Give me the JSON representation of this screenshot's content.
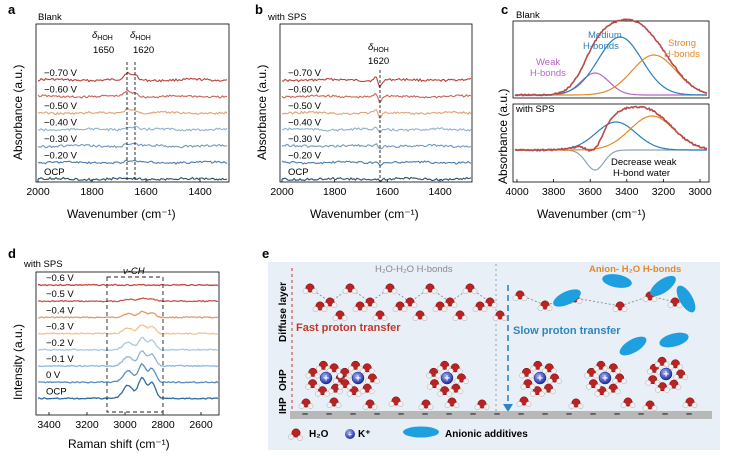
{
  "panels": {
    "a": {
      "label": "a",
      "condition": "Blank",
      "ylabel": "Absorbance (a.u.)",
      "xlabel": "Wavenumber (cm⁻¹)",
      "xticks": [
        "2000",
        "1800",
        "1600",
        "1400"
      ],
      "peak1_sym": "δ",
      "peak1_sub": "HOH",
      "peak1_val": "1650",
      "peak2_sym": "δ",
      "peak2_sub": "HOH",
      "peak2_val": "1620",
      "traces": [
        "−0.70 V",
        "−0.60 V",
        "−0.50 V",
        "−0.40 V",
        "−0.30 V",
        "−0.20 V",
        "OCP"
      ]
    },
    "b": {
      "label": "b",
      "condition": "with SPS",
      "ylabel": "Absorbance (a.u.)",
      "xlabel": "Wavenumber (cm⁻¹)",
      "xticks": [
        "2000",
        "1800",
        "1600",
        "1400"
      ],
      "peak_sym": "δ",
      "peak_sub": "HOH",
      "peak_val": "1620",
      "traces": [
        "−0.70 V",
        "−0.60 V",
        "−0.50 V",
        "−0.40 V",
        "−0.30 V",
        "−0.20 V",
        "OCP"
      ]
    },
    "c": {
      "label": "c",
      "condition_top": "Blank",
      "condition_bottom": "with SPS",
      "ylabel": "Absorbance (a.u.)",
      "xlabel": "Wavenumber (cm⁻¹)",
      "xticks": [
        "4000",
        "3800",
        "3600",
        "3400",
        "3200",
        "3000"
      ],
      "medium_line1": "Medium",
      "medium_line2": "H-bonds",
      "weak_line1": "Weak",
      "weak_line2": "H-bonds",
      "strong_line1": "Strong",
      "strong_line2": "H-bonds",
      "note_line1": "Decrease weak",
      "note_line2": "H-bond water"
    },
    "d": {
      "label": "d",
      "condition": "with SPS",
      "ylabel": "Intensity (a.u.)",
      "xlabel": "Raman shift (cm⁻¹)",
      "xticks": [
        "3400",
        "3200",
        "3000",
        "2800",
        "2600"
      ],
      "band": "ν-CH",
      "traces": [
        "−0.6 V",
        "−0.5 V",
        "−0.4 V",
        "−0.3 V",
        "−0.2 V",
        "−0.1 V",
        "0 V",
        "OCP"
      ]
    },
    "e": {
      "label": "e",
      "left_title": "H₂O-H₂O H-bonds",
      "right_title": "Anion- H₂O H-bonds",
      "left_transfer": "Fast proton transfer",
      "right_transfer": "Slow proton transfer",
      "layer_diffuse": "Diffuse layer",
      "layer_ohp": "OHP",
      "layer_ihp": "IHP",
      "legend_h2o": "H₂O",
      "legend_k": "K⁺",
      "legend_anion": "Anionic additives",
      "charge_sign": "–",
      "cation_sign": "+"
    }
  },
  "colors": {
    "a_traces": [
      "#b8413c",
      "#c9645a",
      "#e0a276",
      "#8fb2cc",
      "#6f99bf",
      "#4a7ca8",
      "#2b4f6e"
    ],
    "b_traces": [
      "#b8413c",
      "#c9645a",
      "#e0a276",
      "#8fb2cc",
      "#6f99bf",
      "#4a7ca8",
      "#2b4f6e"
    ],
    "d_traces": [
      "#c4473f",
      "#c65a4f",
      "#e39d6a",
      "#f1c48f",
      "#a9cae4",
      "#8fb7d8",
      "#5b8ec1",
      "#2f6aa6"
    ],
    "medium": "#2e7fb8",
    "weak": "#b765c4",
    "strong": "#e28a2b",
    "fit": "#b54a4a",
    "panel_e_bg": "#e9eff6",
    "fast": "#c0392b",
    "slow": "#2e86c1",
    "ion": "#2c3fa8",
    "anion": "#1e9fe0"
  }
}
